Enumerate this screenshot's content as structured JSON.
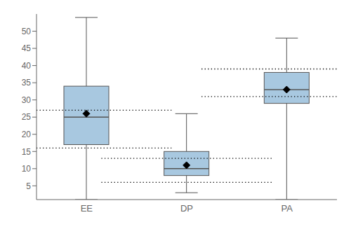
{
  "chart_data": {
    "type": "box",
    "categories": [
      "EE",
      "DP",
      "PA"
    ],
    "whislo": [
      1,
      3,
      1
    ],
    "q1": [
      17,
      8,
      29
    ],
    "med": [
      25,
      10,
      33
    ],
    "mean": [
      26,
      11,
      33
    ],
    "q3": [
      34,
      15,
      38
    ],
    "whishi": [
      54,
      26,
      48
    ],
    "dotted_lines": [
      [
        16,
        27
      ],
      [
        6,
        13
      ],
      [
        31,
        39
      ]
    ],
    "color": "#a8c8e0",
    "ylim": [
      1,
      55
    ],
    "yticks": [
      5,
      10,
      15,
      20,
      25,
      30,
      35,
      40,
      45,
      50
    ],
    "grid": false
  }
}
